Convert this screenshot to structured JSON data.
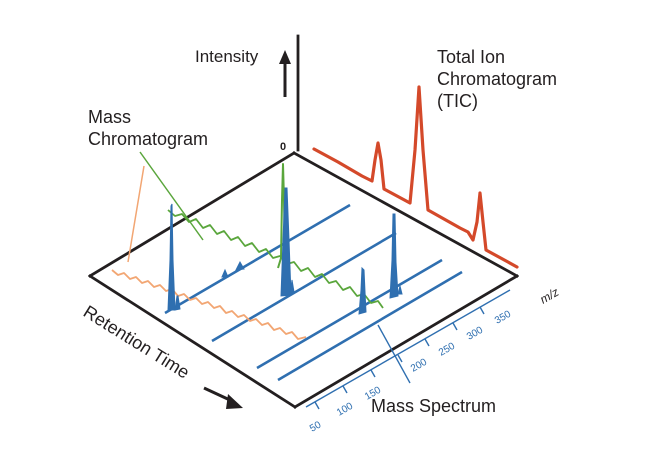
{
  "labels": {
    "intensity": "Intensity",
    "zero": "0",
    "tic_line1": "Total Ion",
    "tic_line2": "Chromatogram",
    "tic_line3": "(TIC)",
    "mass_chrom_line1": "Mass",
    "mass_chrom_line2": "Chromatogram",
    "retention_time": "Retention Time",
    "mass_spectrum": "Mass  Spectrum",
    "mz": "m/z"
  },
  "mz_ticks": [
    "50",
    "100",
    "150",
    "200",
    "250",
    "300",
    "350"
  ],
  "colors": {
    "axis": "#231f20",
    "spectrum": "#2f6fb0",
    "tic": "#d4492a",
    "mass_chrom_green": "#5aa63c",
    "mass_chrom_orange": "#f2a673"
  }
}
